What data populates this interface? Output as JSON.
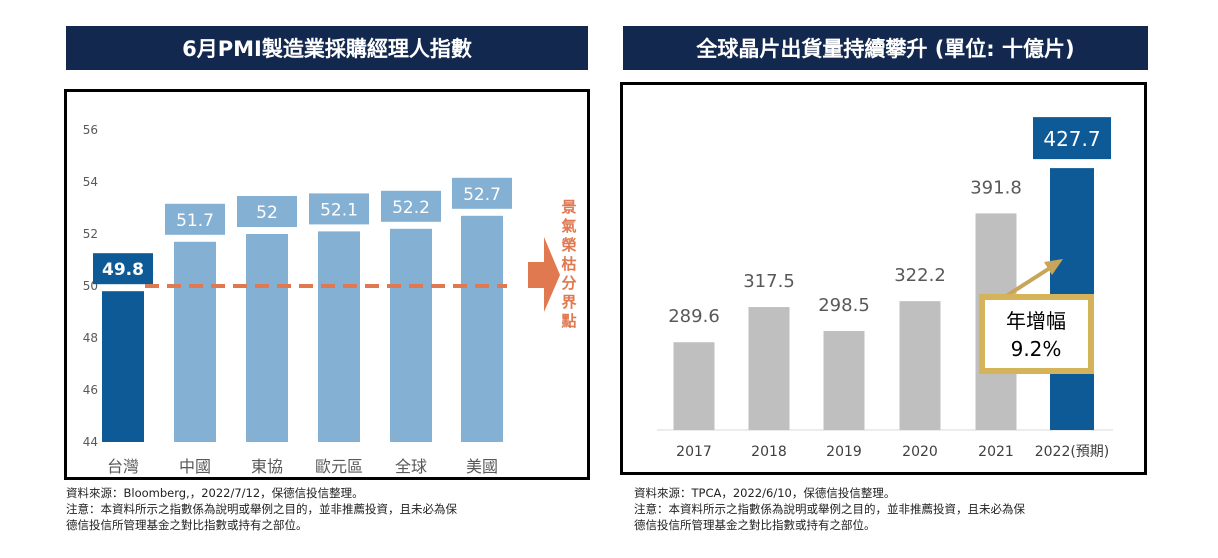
{
  "left_panel": {
    "title": "6月PMI製造業採購經理人指數",
    "source": "資料來源：Bloomberg,，2022/7/12，保德信投信整理。",
    "note_line1": "注意：本資料所示之指數係為說明或舉例之目的，並非推薦投資，且未必為保",
    "note_line2": "德信投信所管理基金之對比指數或持有之部位。"
  },
  "right_panel": {
    "title": "全球晶片出貨量持續攀升 (單位: 十億片)",
    "source": "資料來源：TPCA，2022/6/10，保德信投信整理。",
    "note_line1": "注意：本資料所示之指數係為說明或舉例之目的，並非推薦投資，且未必為保",
    "note_line2": "德信投信所管理基金之對比指數或持有之部位。"
  },
  "chart_data": [
    {
      "type": "bar",
      "title": "6月PMI製造業採購經理人指數",
      "categories": [
        "台灣",
        "中國",
        "東協",
        "歐元區",
        "全球",
        "美國"
      ],
      "values": [
        49.8,
        51.7,
        52,
        52.1,
        52.2,
        52.7
      ],
      "value_labels": [
        "49.8",
        "51.7",
        "52",
        "52.1",
        "52.2",
        "52.7"
      ],
      "highlight_index": 0,
      "ylim": [
        44,
        56
      ],
      "yticks": [
        44,
        46,
        48,
        50,
        52,
        54,
        56
      ],
      "threshold": 50,
      "threshold_label": "景氣榮枯分界點",
      "colors": {
        "highlight": "#0d5a96",
        "bar": "#84b0d3",
        "threshold": "#e07850",
        "label_text": "#ffffff"
      }
    },
    {
      "type": "bar",
      "title": "全球晶片出貨量持續攀升 (單位: 十億片)",
      "categories": [
        "2017",
        "2018",
        "2019",
        "2020",
        "2021",
        "2022(預期)"
      ],
      "values": [
        289.6,
        317.5,
        298.5,
        322.2,
        391.8,
        427.7
      ],
      "value_labels": [
        "289.6",
        "317.5",
        "298.5",
        "322.2",
        "391.8",
        "427.7"
      ],
      "highlight_index": 5,
      "ylim": [
        220,
        450
      ],
      "annotation_line1": "年增幅",
      "annotation_line2": "9.2%",
      "colors": {
        "highlight": "#0d5a96",
        "bar": "#bfbfbf",
        "annotation_border": "#d4b35a",
        "arrow": "#c8a558"
      }
    }
  ]
}
